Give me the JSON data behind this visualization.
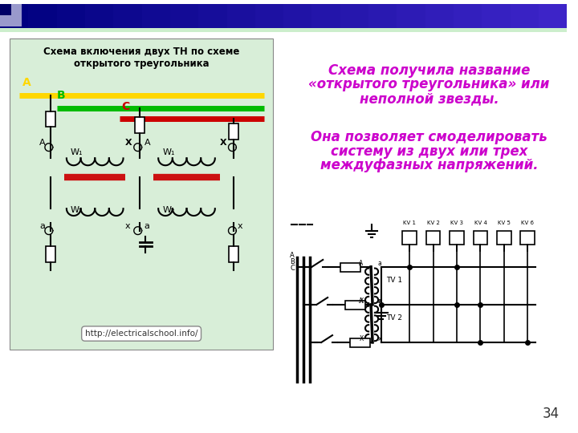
{
  "bg_color": "#ffffff",
  "slide_number": "34",
  "text_color_magenta": "#CC00CC",
  "left_panel_bg": "#D8EED8",
  "left_panel_title": "Схема включения двух ТН по схеме\nоткрытого треугольника",
  "left_panel_url": "http://electricalschool.info/",
  "right_text_line1": "Схема получила название",
  "right_text_line2": "«открытого треугольника» или",
  "right_text_line3": "неполной звезды.",
  "right_text_line4": "Она позволяет смоделировать",
  "right_text_line5": "систему из двух или трех",
  "right_text_line6": "междуфазных напряжений.",
  "color_A": "#FFD700",
  "color_B": "#00BB00",
  "color_C": "#CC0000",
  "color_red_bar": "#CC1111",
  "header_dark": "#000080",
  "header_mid": "#3333AA"
}
